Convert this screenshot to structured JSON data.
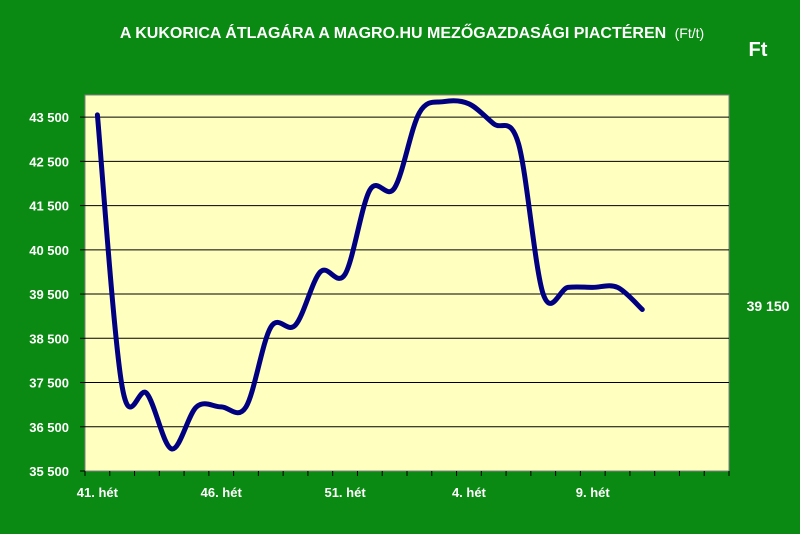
{
  "chart_data": {
    "type": "line",
    "title": "A KUKORICA ÁTLAGÁRA A MAGRO.HU MEZŐGAZDASÁGI PIACTÉREN",
    "subtitle": "(Ft/t)",
    "unit_label": "Ft",
    "end_value_label": "39 150",
    "xlabel": "",
    "ylabel": "",
    "ylim": [
      35500,
      44000
    ],
    "y_ticks": [
      35500,
      36500,
      37500,
      38500,
      39500,
      40500,
      41500,
      42500,
      43500
    ],
    "y_tick_labels": [
      "35 500",
      "36 500",
      "37 500",
      "38 500",
      "39 500",
      "40 500",
      "41 500",
      "42 500",
      "43 500"
    ],
    "x_tick_labels": [
      "41. hét",
      "46. hét",
      "51. hét",
      "4. hét",
      "9. hét"
    ],
    "x_tick_label_indices": [
      0,
      5,
      10,
      15,
      20
    ],
    "x_count": 26,
    "grid": true,
    "colors": {
      "background": "#0a8a12",
      "plot_area": "#ffffc0",
      "line": "#000080",
      "grid": "#000000"
    },
    "series": [
      {
        "values": [
          43550,
          37400,
          37250,
          36000,
          36950,
          36950,
          36950,
          38750,
          38800,
          40000,
          39950,
          41850,
          41900,
          43600,
          43850,
          43800,
          43350,
          42900,
          39500,
          39650,
          39650,
          39650,
          39150
        ]
      }
    ]
  }
}
